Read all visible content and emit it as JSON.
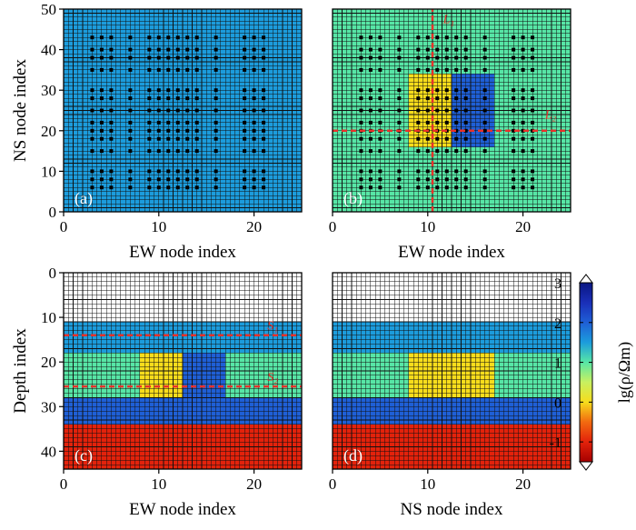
{
  "colors": {
    "c_white": "#ffffff",
    "c_blue": "#1c9cdc",
    "c_aqua": "#57e6a6",
    "c_yellow": "#f7dd1c",
    "c_darkblue": "#1f5fd6",
    "c_red": "#e3220b",
    "grid": "#101010",
    "annotation": "#e8312a"
  },
  "colorbar": {
    "label": "lg(ρ/Ωm)",
    "ticks": [
      "3",
      "2",
      "1",
      "0",
      "-1"
    ],
    "tick_values": [
      3,
      2,
      1,
      0,
      -1
    ],
    "range": [
      -1.5,
      3
    ],
    "stops": [
      {
        "v": -1.5,
        "c": "#a50000"
      },
      {
        "v": -1.0,
        "c": "#e3220b"
      },
      {
        "v": -0.5,
        "c": "#f26a10"
      },
      {
        "v": 0.0,
        "c": "#f7dd1c"
      },
      {
        "v": 0.5,
        "c": "#c8f060"
      },
      {
        "v": 1.0,
        "c": "#57e6a6"
      },
      {
        "v": 1.5,
        "c": "#1c9cdc"
      },
      {
        "v": 2.0,
        "c": "#1f5fd6"
      },
      {
        "v": 2.5,
        "c": "#1a2fb8"
      },
      {
        "v": 3.0,
        "c": "#0a1682"
      }
    ]
  },
  "chart_data": [
    {
      "id": "a",
      "type": "heatmap",
      "panel_label": "(a)",
      "xlabel": "EW node index",
      "ylabel": "NS node index",
      "xlim": [
        0,
        25
      ],
      "ylim": [
        0,
        50
      ],
      "ydir": "up",
      "xticks": [
        0,
        10,
        20
      ],
      "yticks": [
        0,
        10,
        20,
        30,
        40,
        50
      ],
      "background": "c_blue",
      "blocks": [],
      "stations": {
        "x": [
          3,
          4,
          5,
          7,
          9,
          10,
          11,
          12,
          13,
          14,
          16,
          19,
          20,
          21
        ],
        "y": [
          6,
          8,
          10,
          15,
          18,
          20,
          22,
          25,
          28,
          30,
          35,
          38,
          40,
          43
        ]
      },
      "lines": []
    },
    {
      "id": "b",
      "type": "heatmap",
      "panel_label": "(b)",
      "xlabel": "EW node index",
      "ylabel": "",
      "xlim": [
        0,
        25
      ],
      "ylim": [
        0,
        50
      ],
      "ydir": "up",
      "xticks": [
        0,
        10,
        20
      ],
      "yticks": [],
      "background": "c_aqua",
      "blocks": [
        {
          "x0": 8,
          "x1": 12.5,
          "y0": 16,
          "y1": 34,
          "color": "c_yellow"
        },
        {
          "x0": 12.5,
          "x1": 17,
          "y0": 16,
          "y1": 34,
          "color": "c_darkblue"
        }
      ],
      "stations": {
        "x": [
          3,
          4,
          5,
          7,
          9,
          10,
          11,
          12,
          13,
          14,
          16,
          19,
          20,
          21
        ],
        "y": [
          6,
          8,
          10,
          15,
          18,
          20,
          22,
          25,
          28,
          30,
          35,
          38,
          40,
          43
        ]
      },
      "lines": [
        {
          "orient": "v",
          "at": 10.5,
          "from": 0,
          "to": 50,
          "label": "L₁",
          "label_at": [
            11.6,
            46.5
          ]
        },
        {
          "orient": "h",
          "at": 20,
          "from": 0,
          "to": 25,
          "label": "L₂",
          "label_at": [
            22.3,
            23
          ]
        }
      ]
    },
    {
      "id": "c",
      "type": "heatmap",
      "panel_label": "(c)",
      "xlabel": "EW node index",
      "ylabel": "Depth index",
      "xlim": [
        0,
        25
      ],
      "ylim": [
        0,
        44
      ],
      "ydir": "down",
      "xticks": [
        0,
        10,
        20
      ],
      "yticks": [
        0,
        10,
        20,
        30,
        40
      ],
      "background": "c_white",
      "layers": [
        {
          "y0": 11,
          "y1": 18,
          "color": "c_blue"
        },
        {
          "y0": 18,
          "y1": 28,
          "color": "c_aqua"
        },
        {
          "y0": 28,
          "y1": 34,
          "color": "c_darkblue"
        },
        {
          "y0": 34,
          "y1": 44,
          "color": "c_red"
        }
      ],
      "blocks": [
        {
          "x0": 8,
          "x1": 12.5,
          "y0": 18,
          "y1": 28,
          "color": "c_yellow"
        },
        {
          "x0": 12.5,
          "x1": 17,
          "y0": 18,
          "y1": 28,
          "color": "c_darkblue"
        }
      ],
      "stations": null,
      "lines": [
        {
          "orient": "h",
          "at": 14,
          "from": 0,
          "to": 25,
          "label": "S₁",
          "label_at": [
            21.4,
            12.7
          ]
        },
        {
          "orient": "h",
          "at": 25.5,
          "from": 0,
          "to": 25,
          "label": "S₂",
          "label_at": [
            21.4,
            24.2
          ]
        }
      ]
    },
    {
      "id": "d",
      "type": "heatmap",
      "panel_label": "(d)",
      "xlabel": "NS node index",
      "ylabel": "",
      "xlim": [
        0,
        25
      ],
      "ylim": [
        0,
        44
      ],
      "ydir": "down",
      "xticks": [
        0,
        10,
        20
      ],
      "yticks": [],
      "background": "c_white",
      "layers": [
        {
          "y0": 11,
          "y1": 18,
          "color": "c_blue"
        },
        {
          "y0": 18,
          "y1": 28,
          "color": "c_aqua"
        },
        {
          "y0": 28,
          "y1": 34,
          "color": "c_darkblue"
        },
        {
          "y0": 34,
          "y1": 44,
          "color": "c_red"
        }
      ],
      "blocks": [
        {
          "x0": 8,
          "x1": 17,
          "y0": 18,
          "y1": 28,
          "color": "c_yellow"
        }
      ],
      "stations": null,
      "lines": []
    }
  ]
}
